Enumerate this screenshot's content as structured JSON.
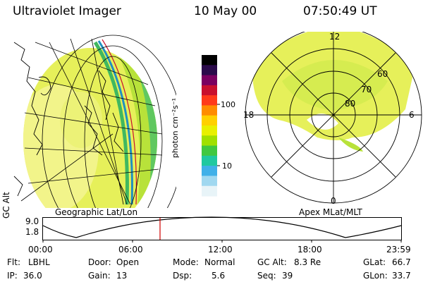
{
  "header": {
    "title": "Ultraviolet Imager",
    "date": "10 May 00",
    "time": "07:50:49 UT"
  },
  "panels": {
    "left_label": "Geographic Lat/Lon",
    "right_label": "Apex MLat/MLT"
  },
  "colorbar": {
    "unit_label": "photon cm⁻²s⁻¹",
    "ticks": [
      "100",
      "10"
    ],
    "colors": [
      "#000000",
      "#2a0a4a",
      "#7a0060",
      "#c8102e",
      "#ff3a1a",
      "#ff8c00",
      "#ffd000",
      "#e8f000",
      "#a0e000",
      "#40c840",
      "#20c8a0",
      "#40b0e8",
      "#a0d8f0",
      "#e8f4f8"
    ]
  },
  "polar": {
    "mlt_labels": {
      "top": "12",
      "left": "18",
      "right": "6",
      "bottom": "0"
    },
    "lat_labels": [
      "60",
      "70",
      "80"
    ]
  },
  "altitude_plot": {
    "ylabel": "GC Alt",
    "yticks": [
      "9.0",
      "1.8"
    ],
    "xticks": [
      "00:00",
      "06:00",
      "12:00",
      "18:00",
      "23:59"
    ],
    "marker_color": "#d00000"
  },
  "info": {
    "row1": [
      {
        "label": "Flt:",
        "value": "LBHL"
      },
      {
        "label": "Door:",
        "value": "Open"
      },
      {
        "label": "Mode:",
        "value": "Normal"
      },
      {
        "label": "GC Alt:",
        "value": "8.3 Re"
      },
      {
        "label": "GLat:",
        "value": "66.7"
      }
    ],
    "row2": [
      {
        "label": "IP:",
        "value": "36.0"
      },
      {
        "label": "Gain:",
        "value": "13"
      },
      {
        "label": "Dsp:",
        "value": "5.6"
      },
      {
        "label": "Seq:",
        "value": "39"
      },
      {
        "label": "GLon:",
        "value": "33.7"
      }
    ]
  }
}
